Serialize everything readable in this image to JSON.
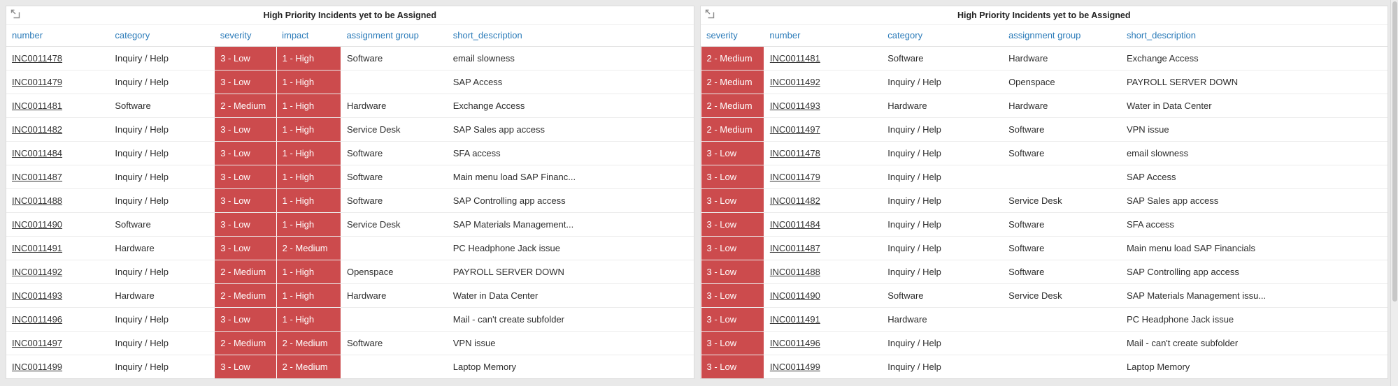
{
  "page": {
    "background": "#e9e9e9"
  },
  "colors": {
    "severity_red": "#cc4b4d",
    "header_blue": "#2b7bb9",
    "link_color": "#333333"
  },
  "scrollbar": {
    "side": "right"
  },
  "widgets": [
    {
      "title": "High Priority Incidents yet to be Assigned",
      "popout_icon": "pop-out-icon",
      "columns": [
        {
          "key": "number",
          "label": "number",
          "type": "link",
          "width": "15%"
        },
        {
          "key": "category",
          "label": "category",
          "type": "text",
          "width": "15.3%"
        },
        {
          "key": "severity",
          "label": "severity",
          "type": "badge",
          "width": "9%"
        },
        {
          "key": "impact",
          "label": "impact",
          "type": "badge",
          "width": "9.4%"
        },
        {
          "key": "assignment_group",
          "label": "assignment group",
          "type": "text",
          "width": "15.5%"
        },
        {
          "key": "short_description",
          "label": "short_description",
          "type": "text",
          "width": "35.8%"
        }
      ],
      "rows": [
        {
          "number": "INC0011478",
          "category": "Inquiry / Help",
          "severity": "3 - Low",
          "impact": "1 - High",
          "assignment_group": "Software",
          "short_description": "email slowness"
        },
        {
          "number": "INC0011479",
          "category": "Inquiry / Help",
          "severity": "3 - Low",
          "impact": "1 - High",
          "assignment_group": "",
          "short_description": "SAP Access"
        },
        {
          "number": "INC0011481",
          "category": "Software",
          "severity": "2 - Medium",
          "impact": "1 - High",
          "assignment_group": "Hardware",
          "short_description": "Exchange Access"
        },
        {
          "number": "INC0011482",
          "category": "Inquiry / Help",
          "severity": "3 - Low",
          "impact": "1 - High",
          "assignment_group": "Service Desk",
          "short_description": "SAP Sales app access"
        },
        {
          "number": "INC0011484",
          "category": "Inquiry / Help",
          "severity": "3 - Low",
          "impact": "1 - High",
          "assignment_group": "Software",
          "short_description": "SFA access"
        },
        {
          "number": "INC0011487",
          "category": "Inquiry / Help",
          "severity": "3 - Low",
          "impact": "1 - High",
          "assignment_group": "Software",
          "short_description": "Main menu load SAP Financ..."
        },
        {
          "number": "INC0011488",
          "category": "Inquiry / Help",
          "severity": "3 - Low",
          "impact": "1 - High",
          "assignment_group": "Software",
          "short_description": "SAP Controlling app access"
        },
        {
          "number": "INC0011490",
          "category": "Software",
          "severity": "3 - Low",
          "impact": "1 - High",
          "assignment_group": "Service Desk",
          "short_description": "SAP Materials Management..."
        },
        {
          "number": "INC0011491",
          "category": "Hardware",
          "severity": "3 - Low",
          "impact": "2 - Medium",
          "assignment_group": "",
          "short_description": "PC Headphone Jack issue"
        },
        {
          "number": "INC0011492",
          "category": "Inquiry / Help",
          "severity": "2 - Medium",
          "impact": "1 - High",
          "assignment_group": "Openspace",
          "short_description": "PAYROLL SERVER DOWN"
        },
        {
          "number": "INC0011493",
          "category": "Hardware",
          "severity": "2 - Medium",
          "impact": "1 - High",
          "assignment_group": "Hardware",
          "short_description": "Water in Data Center"
        },
        {
          "number": "INC0011496",
          "category": "Inquiry / Help",
          "severity": "3 - Low",
          "impact": "1 - High",
          "assignment_group": "",
          "short_description": "Mail - can't create subfolder"
        },
        {
          "number": "INC0011497",
          "category": "Inquiry / Help",
          "severity": "2 - Medium",
          "impact": "2 - Medium",
          "assignment_group": "Software",
          "short_description": "VPN issue"
        },
        {
          "number": "INC0011499",
          "category": "Inquiry / Help",
          "severity": "3 - Low",
          "impact": "2 - Medium",
          "assignment_group": "",
          "short_description": "Laptop Memory"
        }
      ]
    },
    {
      "title": "High Priority Incidents yet to be Assigned",
      "popout_icon": "pop-out-icon",
      "columns": [
        {
          "key": "severity",
          "label": "severity",
          "type": "badge",
          "width": "9.2%"
        },
        {
          "key": "number",
          "label": "number",
          "type": "link",
          "width": "17.2%"
        },
        {
          "key": "category",
          "label": "category",
          "type": "text",
          "width": "17.6%"
        },
        {
          "key": "assignment_group",
          "label": "assignment group",
          "type": "text",
          "width": "17.2%"
        },
        {
          "key": "short_description",
          "label": "short_description",
          "type": "text",
          "width": "38.8%"
        }
      ],
      "rows": [
        {
          "severity": "2 - Medium",
          "number": "INC0011481",
          "category": "Software",
          "assignment_group": "Hardware",
          "short_description": "Exchange Access"
        },
        {
          "severity": "2 - Medium",
          "number": "INC0011492",
          "category": "Inquiry / Help",
          "assignment_group": "Openspace",
          "short_description": "PAYROLL SERVER DOWN"
        },
        {
          "severity": "2 - Medium",
          "number": "INC0011493",
          "category": "Hardware",
          "assignment_group": "Hardware",
          "short_description": "Water in Data Center"
        },
        {
          "severity": "2 - Medium",
          "number": "INC0011497",
          "category": "Inquiry / Help",
          "assignment_group": "Software",
          "short_description": "VPN issue"
        },
        {
          "severity": "3 - Low",
          "number": "INC0011478",
          "category": "Inquiry / Help",
          "assignment_group": "Software",
          "short_description": "email slowness"
        },
        {
          "severity": "3 - Low",
          "number": "INC0011479",
          "category": "Inquiry / Help",
          "assignment_group": "",
          "short_description": "SAP Access"
        },
        {
          "severity": "3 - Low",
          "number": "INC0011482",
          "category": "Inquiry / Help",
          "assignment_group": "Service Desk",
          "short_description": "SAP Sales app access"
        },
        {
          "severity": "3 - Low",
          "number": "INC0011484",
          "category": "Inquiry / Help",
          "assignment_group": "Software",
          "short_description": "SFA access"
        },
        {
          "severity": "3 - Low",
          "number": "INC0011487",
          "category": "Inquiry / Help",
          "assignment_group": "Software",
          "short_description": "Main menu load SAP Financials"
        },
        {
          "severity": "3 - Low",
          "number": "INC0011488",
          "category": "Inquiry / Help",
          "assignment_group": "Software",
          "short_description": "SAP Controlling app access"
        },
        {
          "severity": "3 - Low",
          "number": "INC0011490",
          "category": "Software",
          "assignment_group": "Service Desk",
          "short_description": "SAP Materials Management issu..."
        },
        {
          "severity": "3 - Low",
          "number": "INC0011491",
          "category": "Hardware",
          "assignment_group": "",
          "short_description": "PC Headphone Jack issue"
        },
        {
          "severity": "3 - Low",
          "number": "INC0011496",
          "category": "Inquiry / Help",
          "assignment_group": "",
          "short_description": "Mail - can't create subfolder"
        },
        {
          "severity": "3 - Low",
          "number": "INC0011499",
          "category": "Inquiry / Help",
          "assignment_group": "",
          "short_description": "Laptop Memory"
        }
      ]
    }
  ]
}
